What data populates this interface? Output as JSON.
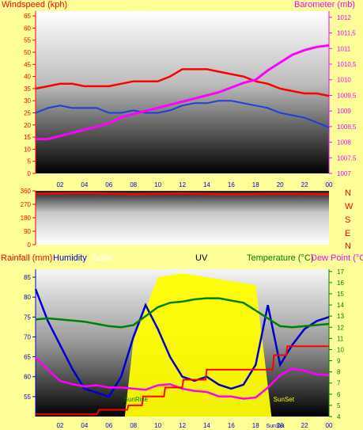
{
  "colors": {
    "bg": "#ffff99",
    "wind": "#ff0000",
    "gust_avg": "#1f3fd8",
    "baro": "#ff00ff",
    "dir": "#ff0000",
    "rain": "#ff0000",
    "hum": "#0000cc",
    "solar": "#ffff00",
    "temp": "#008000",
    "dew": "#ff00ff",
    "uvlbl": "#000000",
    "tick": "#0000cc"
  },
  "header": {
    "left": "Windspeed (kph)",
    "center": "...",
    "right": "Barometer (mb)"
  },
  "wind_dir_labels": [
    "N",
    "W",
    "S",
    "E",
    "N"
  ],
  "legend": {
    "rainfall": "Rainfall (mm)",
    "humidity": "Humidity",
    "solar": "Solar",
    "uv": "UV",
    "temperature": "Temperature (°C)",
    "dewpoint": "Dew Point (°C)"
  },
  "annotations": {
    "sunrise": "SunRise",
    "sunset": "SunSet",
    "sunset_axis": "SunSet"
  },
  "x_ticks": [
    "02",
    "04",
    "06",
    "08",
    "10",
    "12",
    "14",
    "16",
    "18",
    "20",
    "22",
    "00"
  ],
  "chart_data": [
    {
      "type": "line",
      "title": "",
      "xlabel": "",
      "ylabel": "Windspeed (kph)",
      "y2label": "Barometer (mb)",
      "ylim": [
        0,
        67
      ],
      "y2lim": [
        1007,
        1012.2
      ],
      "yticks": [
        0,
        5,
        10,
        15,
        20,
        25,
        30,
        35,
        40,
        45,
        50,
        55,
        60,
        65
      ],
      "y2ticks": [
        1007,
        1007.5,
        1008,
        1008.5,
        1009,
        1009.5,
        1010,
        1010.5,
        1011,
        1011.5,
        1012
      ],
      "x_ticks": [
        "02",
        "04",
        "06",
        "08",
        "10",
        "12",
        "14",
        "16",
        "18",
        "20",
        "22",
        "00"
      ],
      "series": [
        {
          "name": "Windspeed",
          "axis": "left",
          "points": [
            [
              0,
              35
            ],
            [
              1,
              36
            ],
            [
              2,
              37
            ],
            [
              3,
              37
            ],
            [
              4,
              36
            ],
            [
              5,
              36
            ],
            [
              6,
              36
            ],
            [
              7,
              37
            ],
            [
              8,
              38
            ],
            [
              9,
              38
            ],
            [
              10,
              38
            ],
            [
              11,
              40
            ],
            [
              12,
              43
            ],
            [
              13,
              43
            ],
            [
              14,
              43
            ],
            [
              15,
              42
            ],
            [
              16,
              41
            ],
            [
              17,
              40
            ],
            [
              18,
              38
            ],
            [
              19,
              37
            ],
            [
              20,
              35
            ],
            [
              21,
              34
            ],
            [
              22,
              33
            ],
            [
              23,
              33
            ],
            [
              24,
              32
            ]
          ]
        },
        {
          "name": "Gust",
          "axis": "left",
          "points": [
            [
              0,
              25
            ],
            [
              1,
              27
            ],
            [
              2,
              28
            ],
            [
              3,
              27
            ],
            [
              4,
              27
            ],
            [
              5,
              27
            ],
            [
              6,
              25
            ],
            [
              7,
              25
            ],
            [
              8,
              26
            ],
            [
              9,
              25
            ],
            [
              10,
              25
            ],
            [
              11,
              26
            ],
            [
              12,
              28
            ],
            [
              13,
              29
            ],
            [
              14,
              29
            ],
            [
              15,
              30
            ],
            [
              16,
              30
            ],
            [
              17,
              29
            ],
            [
              18,
              28
            ],
            [
              19,
              27
            ],
            [
              20,
              25
            ],
            [
              21,
              24
            ],
            [
              22,
              23
            ],
            [
              23,
              21
            ],
            [
              24,
              19
            ]
          ]
        },
        {
          "name": "Barometer",
          "axis": "right",
          "points": [
            [
              0,
              1008.1
            ],
            [
              1,
              1008.1
            ],
            [
              2,
              1008.2
            ],
            [
              3,
              1008.3
            ],
            [
              4,
              1008.4
            ],
            [
              5,
              1008.5
            ],
            [
              6,
              1008.6
            ],
            [
              7,
              1008.8
            ],
            [
              8,
              1008.9
            ],
            [
              9,
              1009
            ],
            [
              10,
              1009.1
            ],
            [
              11,
              1009.2
            ],
            [
              12,
              1009.3
            ],
            [
              13,
              1009.4
            ],
            [
              14,
              1009.5
            ],
            [
              15,
              1009.6
            ],
            [
              16,
              1009.75
            ],
            [
              17,
              1009.9
            ],
            [
              18,
              1010
            ],
            [
              19,
              1010.3
            ],
            [
              20,
              1010.55
            ],
            [
              21,
              1010.8
            ],
            [
              22,
              1010.95
            ],
            [
              23,
              1011.05
            ],
            [
              24,
              1011.1
            ]
          ]
        }
      ]
    },
    {
      "type": "line",
      "title": "",
      "ylabel": "",
      "ylim": [
        0,
        360
      ],
      "yticks": [
        0,
        90,
        180,
        270,
        360
      ],
      "y2labels": [
        "N",
        "W",
        "S",
        "E",
        "N"
      ],
      "series": [
        {
          "name": "Wind direction",
          "points": [
            [
              0,
              340
            ],
            [
              4,
              345
            ],
            [
              8,
              338
            ],
            [
              12,
              342
            ],
            [
              16,
              336
            ],
            [
              20,
              340
            ],
            [
              24,
              338
            ]
          ]
        }
      ]
    },
    {
      "type": "line",
      "title": "",
      "ylabel": "Rainfall (mm)",
      "y2label": "Temperature (°C)",
      "ylim": [
        50,
        87
      ],
      "yticks": [
        55,
        60,
        65,
        70,
        75,
        80,
        85
      ],
      "y2lim": [
        4,
        17.2
      ],
      "y2ticks": [
        4,
        5,
        6,
        7,
        8,
        9,
        10,
        11,
        12,
        13,
        14,
        15,
        16,
        17
      ],
      "series": [
        {
          "name": "Humidity",
          "axis": "left",
          "points": [
            [
              0,
              82
            ],
            [
              1,
              74
            ],
            [
              2,
              68
            ],
            [
              3,
              62
            ],
            [
              4,
              57
            ],
            [
              5,
              56
            ],
            [
              6,
              55
            ],
            [
              7,
              60
            ],
            [
              8,
              70
            ],
            [
              9,
              78
            ],
            [
              10,
              72
            ],
            [
              11,
              65
            ],
            [
              12,
              60
            ],
            [
              13,
              59
            ],
            [
              14,
              60
            ],
            [
              15,
              58
            ],
            [
              16,
              57
            ],
            [
              17,
              58
            ],
            [
              18,
              63
            ],
            [
              19,
              78
            ],
            [
              20,
              63
            ],
            [
              21,
              68
            ],
            [
              22,
              72
            ],
            [
              23,
              74
            ],
            [
              24,
              75
            ]
          ]
        },
        {
          "name": "Temperature",
          "axis": "right",
          "points": [
            [
              0,
              12.7
            ],
            [
              1,
              12.8
            ],
            [
              2,
              12.7
            ],
            [
              3,
              12.6
            ],
            [
              4,
              12.5
            ],
            [
              5,
              12.3
            ],
            [
              6,
              12.1
            ],
            [
              7,
              12
            ],
            [
              8,
              12.2
            ],
            [
              9,
              13
            ],
            [
              10,
              13.8
            ],
            [
              11,
              14.2
            ],
            [
              12,
              14.3
            ],
            [
              13,
              14.5
            ],
            [
              14,
              14.6
            ],
            [
              15,
              14.6
            ],
            [
              16,
              14.4
            ],
            [
              17,
              14.2
            ],
            [
              18,
              13.5
            ],
            [
              19,
              12.8
            ],
            [
              20,
              12.1
            ],
            [
              21,
              12
            ],
            [
              22,
              12.1
            ],
            [
              23,
              12.2
            ],
            [
              24,
              12.3
            ]
          ]
        },
        {
          "name": "Dew Point",
          "axis": "right",
          "points": [
            [
              0,
              9.3
            ],
            [
              1,
              8.2
            ],
            [
              2,
              7.2
            ],
            [
              3,
              6.9
            ],
            [
              4,
              6.7
            ],
            [
              5,
              6.8
            ],
            [
              6,
              6.6
            ],
            [
              7,
              6.6
            ],
            [
              8,
              6.5
            ],
            [
              9,
              6.4
            ],
            [
              10,
              6.8
            ],
            [
              11,
              6.9
            ],
            [
              12,
              6.5
            ],
            [
              13,
              6.3
            ],
            [
              14,
              6.2
            ],
            [
              15,
              5.8
            ],
            [
              16,
              5.8
            ],
            [
              17,
              5.6
            ],
            [
              18,
              5.7
            ],
            [
              19,
              6.6
            ],
            [
              20,
              7.7
            ],
            [
              21,
              8.3
            ],
            [
              22,
              8.1
            ],
            [
              23,
              7.8
            ],
            [
              24,
              7.7
            ]
          ]
        },
        {
          "name": "Rainfall",
          "axis": "right",
          "points": [
            [
              0,
              4.2
            ],
            [
              5,
              4.2
            ],
            [
              5.2,
              4.6
            ],
            [
              7.5,
              4.6
            ],
            [
              7.6,
              5
            ],
            [
              8.7,
              5
            ],
            [
              8.8,
              5.8
            ],
            [
              10.5,
              5.8
            ],
            [
              10.6,
              6.6
            ],
            [
              12,
              6.6
            ],
            [
              12.1,
              7.3
            ],
            [
              13.9,
              7.3
            ],
            [
              14,
              8.2
            ],
            [
              19.4,
              8.2
            ],
            [
              19.5,
              9.5
            ],
            [
              20.5,
              9.5
            ],
            [
              20.6,
              10.3
            ],
            [
              24,
              10.3
            ]
          ]
        }
      ]
    }
  ]
}
